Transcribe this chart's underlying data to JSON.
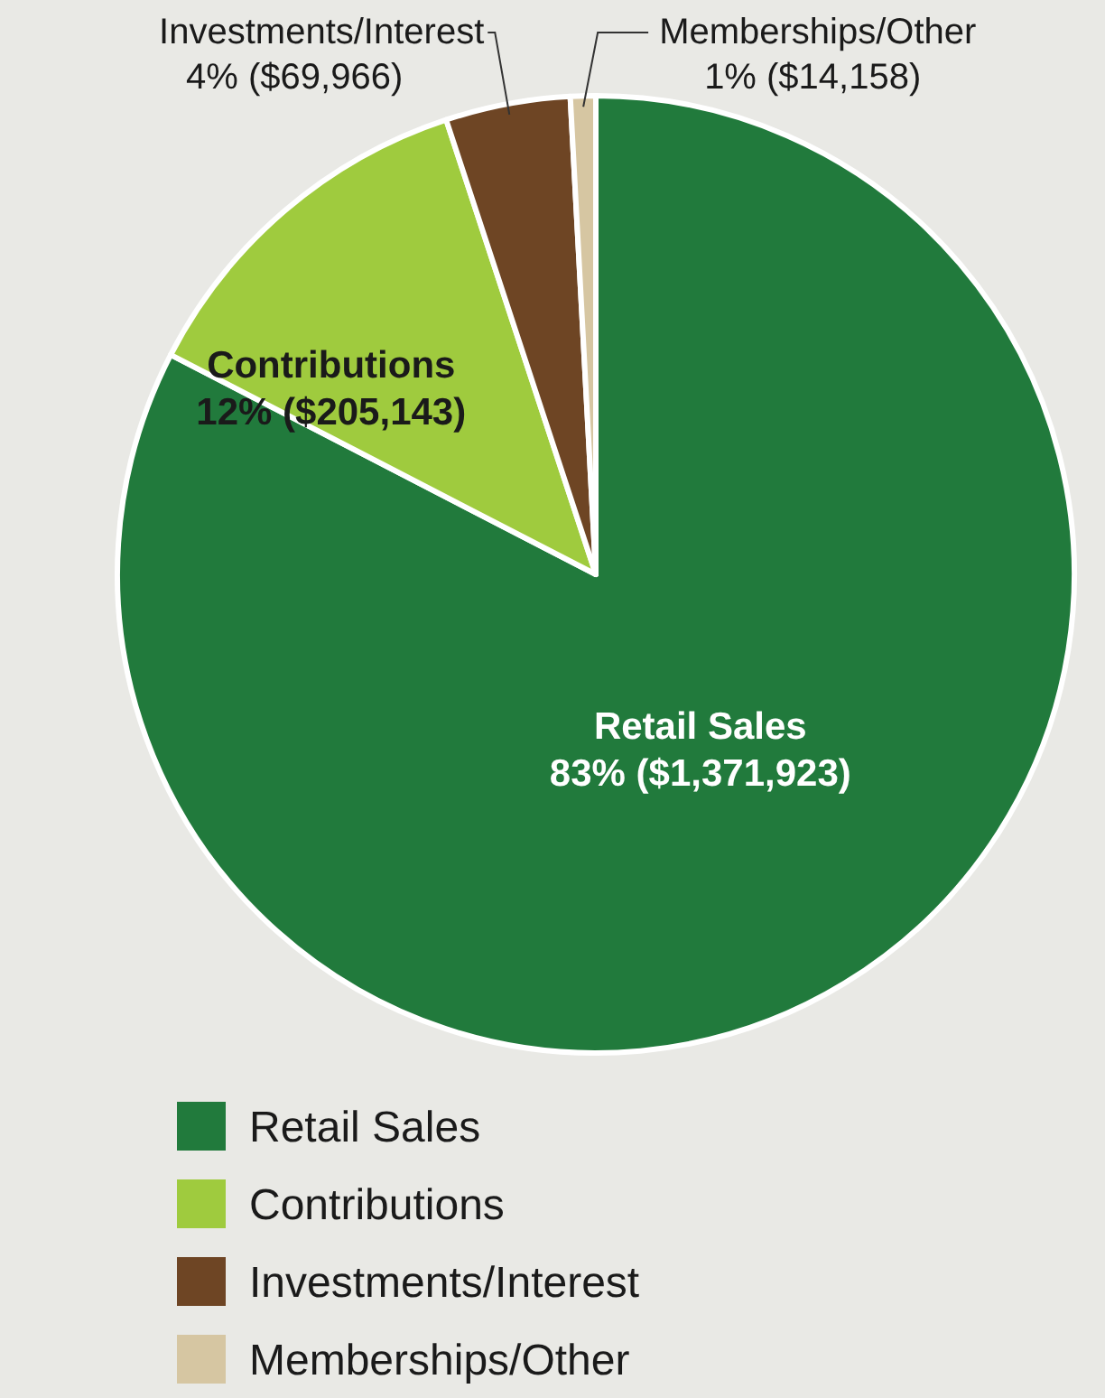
{
  "chart_data": {
    "type": "pie",
    "categories": [
      "Retail Sales",
      "Contributions",
      "Investments/Interest",
      "Memberships/Other"
    ],
    "values": [
      1371923,
      205143,
      69966,
      14158
    ],
    "value_labels": [
      "83% ($1,371,923)",
      "12% ($205,143)",
      "4% ($69,966)",
      "1% ($14,158)"
    ],
    "colors": [
      "#217a3c",
      "#9fcb3e",
      "#6e4524",
      "#d6c6a2"
    ],
    "legend": "bottom"
  }
}
